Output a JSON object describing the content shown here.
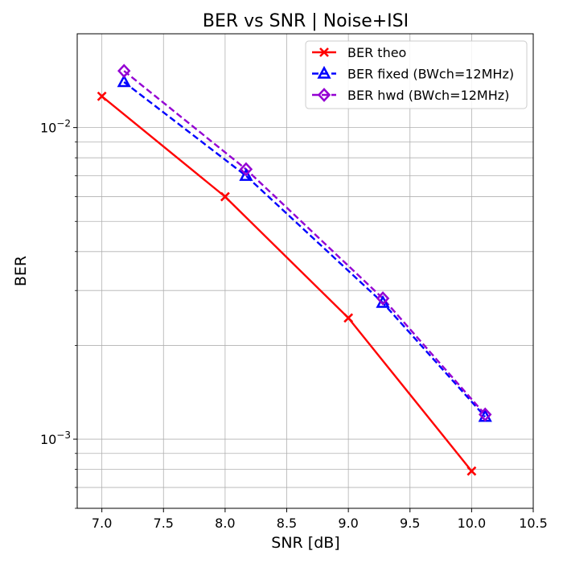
{
  "chart_data": {
    "type": "line",
    "title": "BER vs SNR | Noise+ISI",
    "xlabel": "SNR [dB]",
    "ylabel": "BER",
    "xlim": [
      6.8,
      10.5
    ],
    "ylim": [
      0.0006,
      0.02
    ],
    "yscale": "log",
    "grid": true,
    "grid_minor": true,
    "legend_position": "top-right",
    "x_ticks": [
      "7.0",
      "7.5",
      "8.0",
      "8.5",
      "9.0",
      "9.5",
      "10.0",
      "10.5"
    ],
    "y_ticks": [
      {
        "base": "10",
        "exp": "−2",
        "value": 0.01
      },
      {
        "base": "10",
        "exp": "−3",
        "value": 0.001
      }
    ],
    "series": [
      {
        "name": "BER theo",
        "color": "#ff0000",
        "style": "solid",
        "marker": "x",
        "x": [
          7.0,
          8.0,
          9.0,
          10.0
        ],
        "y": [
          0.0126,
          0.006,
          0.00245,
          0.00079
        ]
      },
      {
        "name": "BER fixed (BWch=12MHz)",
        "color": "#0000ff",
        "style": "dashed",
        "marker": "triangle",
        "x": [
          7.18,
          8.17,
          9.28,
          10.11
        ],
        "y": [
          0.014,
          0.007,
          0.00274,
          0.00118
        ]
      },
      {
        "name": "BER hwd (BWch=12MHz)",
        "color": "#9400d3",
        "style": "dashed",
        "marker": "diamond",
        "x": [
          7.18,
          8.17,
          9.28,
          10.11
        ],
        "y": [
          0.0152,
          0.00735,
          0.00283,
          0.0012
        ]
      }
    ]
  }
}
